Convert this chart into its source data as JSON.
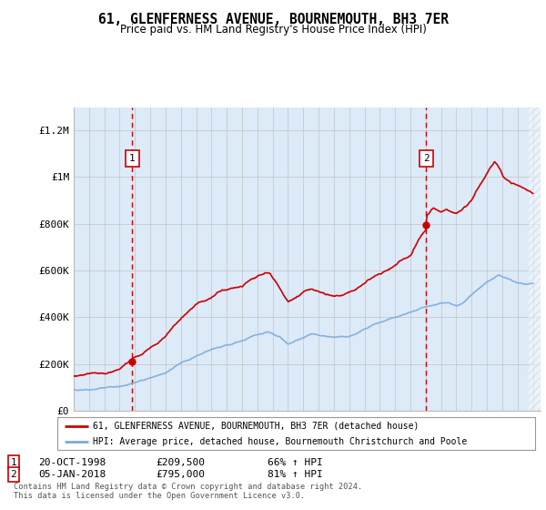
{
  "title": "61, GLENFERNESS AVENUE, BOURNEMOUTH, BH3 7ER",
  "subtitle": "Price paid vs. HM Land Registry's House Price Index (HPI)",
  "x_start": 1995.0,
  "x_end": 2025.5,
  "y_max": 1300000,
  "background_color": "#ddeaf7",
  "sale1_x": 1998.833,
  "sale1_y": 209500,
  "sale2_x": 2018.03,
  "sale2_y": 795000,
  "sale1_label": "20-OCT-1998",
  "sale1_price": "£209,500",
  "sale1_hpi": "66% ↑ HPI",
  "sale2_label": "05-JAN-2018",
  "sale2_price": "£795,000",
  "sale2_hpi": "81% ↑ HPI",
  "legend_line1": "61, GLENFERNESS AVENUE, BOURNEMOUTH, BH3 7ER (detached house)",
  "legend_line2": "HPI: Average price, detached house, Bournemouth Christchurch and Poole",
  "footer1": "Contains HM Land Registry data © Crown copyright and database right 2024.",
  "footer2": "This data is licensed under the Open Government Licence v3.0.",
  "red_color": "#cc0000",
  "blue_color": "#7aacdc",
  "grid_color": "#bbbbbb",
  "yticks": [
    0,
    200000,
    400000,
    600000,
    800000,
    1000000,
    1200000
  ],
  "ytick_labels": [
    "£0",
    "£200K",
    "£400K",
    "£600K",
    "£800K",
    "£1M",
    "£1.2M"
  ],
  "xticks": [
    1995,
    1996,
    1997,
    1998,
    1999,
    2000,
    2001,
    2002,
    2003,
    2004,
    2005,
    2006,
    2007,
    2008,
    2009,
    2010,
    2011,
    2012,
    2013,
    2014,
    2015,
    2016,
    2017,
    2018,
    2019,
    2020,
    2021,
    2022,
    2023,
    2024,
    2025
  ]
}
